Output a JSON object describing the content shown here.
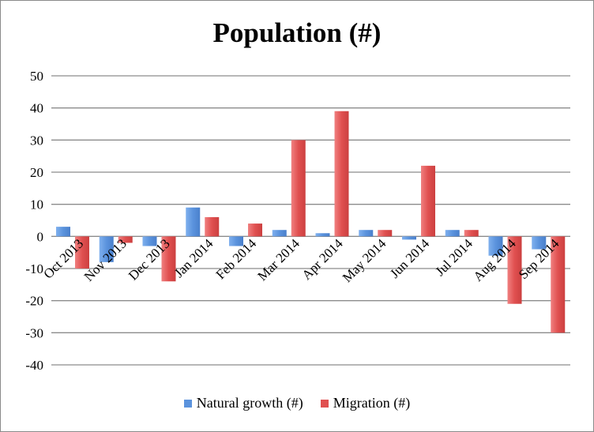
{
  "chart_data": {
    "type": "bar",
    "title": "Population (#)",
    "categories": [
      "Oct 2013",
      "Nov 2013",
      "Dec 2013",
      "Jan 2014",
      "Feb 2014",
      "Mar 2014",
      "Apr 2014",
      "May 2014",
      "Jun 2014",
      "Jul 2014",
      "Aug 2014",
      "Sep 2014"
    ],
    "series": [
      {
        "name": "Natural growth (#)",
        "color": "#5b93dd",
        "values": [
          3,
          -8,
          -3,
          9,
          -3,
          2,
          1,
          2,
          -1,
          2,
          -6,
          -4
        ]
      },
      {
        "name": "Migration (#)",
        "color": "#e05050",
        "values": [
          -10,
          -2,
          -14,
          6,
          4,
          30,
          39,
          2,
          22,
          2,
          -21,
          -30
        ]
      }
    ],
    "ylim": [
      -40,
      50
    ],
    "yticks": [
      50,
      40,
      30,
      20,
      10,
      0,
      -10,
      -20,
      -30,
      -40
    ],
    "grid": true,
    "legend": "bottom"
  }
}
